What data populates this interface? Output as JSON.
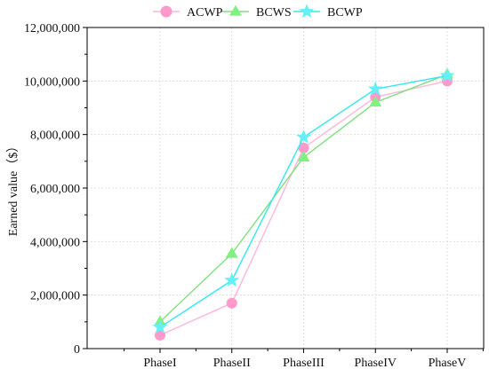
{
  "chart_data": {
    "type": "line",
    "categories": [
      "PhaseI",
      "PhaseII",
      "PhaseIII",
      "PhaseIV",
      "PhaseV"
    ],
    "ylabel": "Earned value（$）",
    "ylim": [
      0,
      12000000
    ],
    "yticks": [
      "0",
      "2,000,000",
      "4,000,000",
      "6,000,000",
      "8,000,000",
      "10,000,000",
      "12,000,000"
    ],
    "grid": true,
    "legend_position": "top-center",
    "series": [
      {
        "name": "ACWP",
        "marker": "circle",
        "color": "#ff99cc",
        "line_color": "#ffb6d9",
        "values": [
          500000,
          1700000,
          7500000,
          9400000,
          10000000
        ]
      },
      {
        "name": "BCWS",
        "marker": "triangle",
        "color": "#80f080",
        "line_color": "#7fe07f",
        "values": [
          1000000,
          3550000,
          7150000,
          9200000,
          10250000
        ]
      },
      {
        "name": "BCWP",
        "marker": "star",
        "color": "#66f0f6",
        "line_color": "#33e8f0",
        "values": [
          800000,
          2550000,
          7900000,
          9700000,
          10200000
        ]
      }
    ]
  }
}
